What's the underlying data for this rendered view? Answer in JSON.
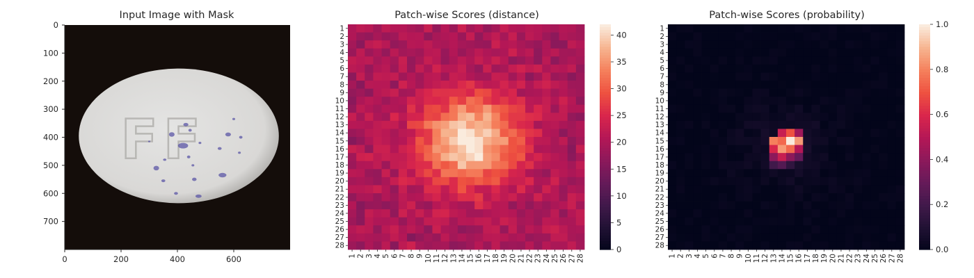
{
  "chart_data": [
    {
      "type": "image",
      "title": "Input Image with Mask",
      "xlabel": "",
      "ylabel": "",
      "xlim": [
        0,
        800
      ],
      "ylim": [
        800,
        0
      ],
      "xticks": [
        0,
        200,
        400,
        600
      ],
      "yticks": [
        0,
        100,
        200,
        300,
        400,
        500,
        600,
        700
      ],
      "image_content": {
        "background": "#140d0a",
        "pill_color": "#d9d8d6",
        "pill_embossed_text": "FF",
        "spot_color": "#5b56a6"
      }
    },
    {
      "type": "heatmap",
      "title": "Patch-wise Scores (distance)",
      "xlabel": "",
      "ylabel": "",
      "rows": 28,
      "cols": 28,
      "row_labels": [
        "1",
        "2",
        "3",
        "4",
        "5",
        "6",
        "7",
        "8",
        "9",
        "10",
        "11",
        "12",
        "13",
        "14",
        "15",
        "16",
        "17",
        "18",
        "19",
        "20",
        "21",
        "22",
        "23",
        "24",
        "25",
        "26",
        "27",
        "28"
      ],
      "col_labels": [
        "1",
        "2",
        "3",
        "4",
        "5",
        "6",
        "7",
        "8",
        "9",
        "10",
        "11",
        "12",
        "13",
        "14",
        "15",
        "16",
        "17",
        "18",
        "19",
        "20",
        "21",
        "22",
        "23",
        "24",
        "25",
        "26",
        "27",
        "28"
      ],
      "colormap": "rocket",
      "vmin": 0,
      "vmax": 42,
      "colorbar_ticks": [
        0,
        5,
        10,
        15,
        20,
        25,
        30,
        35,
        40
      ],
      "peak": {
        "row": 15,
        "col": 15,
        "value": 42
      },
      "background_value_range": [
        17,
        23
      ]
    },
    {
      "type": "heatmap",
      "title": "Patch-wise Scores (probability)",
      "xlabel": "",
      "ylabel": "",
      "rows": 28,
      "cols": 28,
      "row_labels": [
        "1",
        "2",
        "3",
        "4",
        "5",
        "6",
        "7",
        "8",
        "9",
        "10",
        "11",
        "12",
        "13",
        "14",
        "15",
        "16",
        "17",
        "18",
        "19",
        "20",
        "21",
        "22",
        "23",
        "24",
        "25",
        "26",
        "27",
        "28"
      ],
      "col_labels": [
        "1",
        "2",
        "3",
        "4",
        "5",
        "6",
        "7",
        "8",
        "9",
        "10",
        "11",
        "12",
        "13",
        "14",
        "15",
        "16",
        "17",
        "18",
        "19",
        "20",
        "21",
        "22",
        "23",
        "24",
        "25",
        "26",
        "27",
        "28"
      ],
      "colormap": "rocket",
      "vmin": 0,
      "vmax": 1,
      "colorbar_ticks": [
        "0.0",
        "0.2",
        "0.4",
        "0.6",
        "0.8",
        "1.0"
      ],
      "peak": {
        "row": 15,
        "col": 15,
        "value": 1.0
      },
      "hot_cells": [
        {
          "row": 14,
          "col": 14,
          "value": 0.55
        },
        {
          "row": 14,
          "col": 15,
          "value": 0.7
        },
        {
          "row": 14,
          "col": 16,
          "value": 0.45
        },
        {
          "row": 15,
          "col": 13,
          "value": 0.8
        },
        {
          "row": 15,
          "col": 14,
          "value": 0.75
        },
        {
          "row": 15,
          "col": 15,
          "value": 1.0
        },
        {
          "row": 15,
          "col": 16,
          "value": 0.85
        },
        {
          "row": 16,
          "col": 13,
          "value": 0.6
        },
        {
          "row": 16,
          "col": 14,
          "value": 0.85
        },
        {
          "row": 16,
          "col": 15,
          "value": 0.75
        },
        {
          "row": 16,
          "col": 16,
          "value": 0.5
        },
        {
          "row": 17,
          "col": 13,
          "value": 0.4
        },
        {
          "row": 17,
          "col": 14,
          "value": 0.55
        },
        {
          "row": 17,
          "col": 15,
          "value": 0.4
        },
        {
          "row": 17,
          "col": 16,
          "value": 0.3
        },
        {
          "row": 18,
          "col": 13,
          "value": 0.2
        },
        {
          "row": 18,
          "col": 14,
          "value": 0.25
        },
        {
          "row": 18,
          "col": 15,
          "value": 0.15
        }
      ]
    }
  ]
}
